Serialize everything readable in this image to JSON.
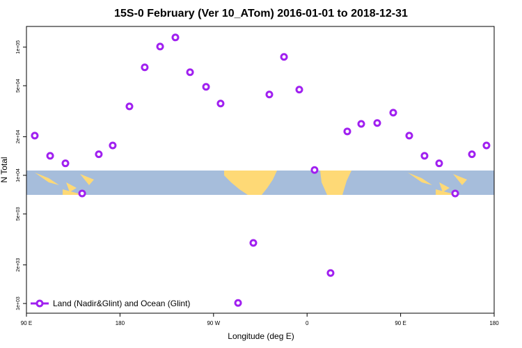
{
  "chart_data": {
    "type": "scatter",
    "title": "15S-0 February (Ver 10_ATom)   2016-01-01 to 2018-12-31",
    "x_label": "Longitude (deg E)",
    "y_label": "N Total",
    "log_y": true,
    "legend_position": "bottom-left",
    "xlim": [
      90,
      540
    ],
    "xticks": [
      {
        "value": 90,
        "label": "90 E"
      },
      {
        "value": 180,
        "label": "180"
      },
      {
        "value": 270,
        "label": "90 W"
      },
      {
        "value": 360,
        "label": "0"
      },
      {
        "value": 450,
        "label": "90 E"
      },
      {
        "value": 540,
        "label": "180"
      }
    ],
    "ylim": [
      840,
      145000
    ],
    "yticks": [
      {
        "value": 1000,
        "label": "1e+03"
      },
      {
        "value": 2000,
        "label": "2e+03"
      },
      {
        "value": 5000,
        "label": "5e+03"
      },
      {
        "value": 10000,
        "label": "1e+04"
      },
      {
        "value": 20000,
        "label": "2e+04"
      },
      {
        "value": 50000,
        "label": "5e+04"
      },
      {
        "value": 100000,
        "label": "1e+05"
      }
    ],
    "series": [
      {
        "name": "Land (Nadir&Glint) and Ocean (Glint)",
        "color": "#a020f0",
        "x": [
          98,
          112.8,
          127.5,
          143.6,
          159.6,
          173,
          189.1,
          203.8,
          218.6,
          233.3,
          247.4,
          262.8,
          276.8,
          293.6,
          308.3,
          323.7,
          337.8,
          352.5,
          367.2,
          382.6,
          398.7,
          412.1,
          427.5,
          442.9,
          458.3,
          473,
          487.1,
          502.5,
          518.6,
          532.6
        ],
        "values": [
          20400,
          14200,
          12400,
          7220,
          14600,
          17100,
          34500,
          69600,
          101000,
          119000,
          63700,
          49000,
          36300,
          1010,
          2970,
          42700,
          83900,
          46600,
          11000,
          1730,
          22000,
          25200,
          25600,
          30800,
          20400,
          14200,
          12400,
          7220,
          14600,
          17100
        ]
      }
    ]
  }
}
